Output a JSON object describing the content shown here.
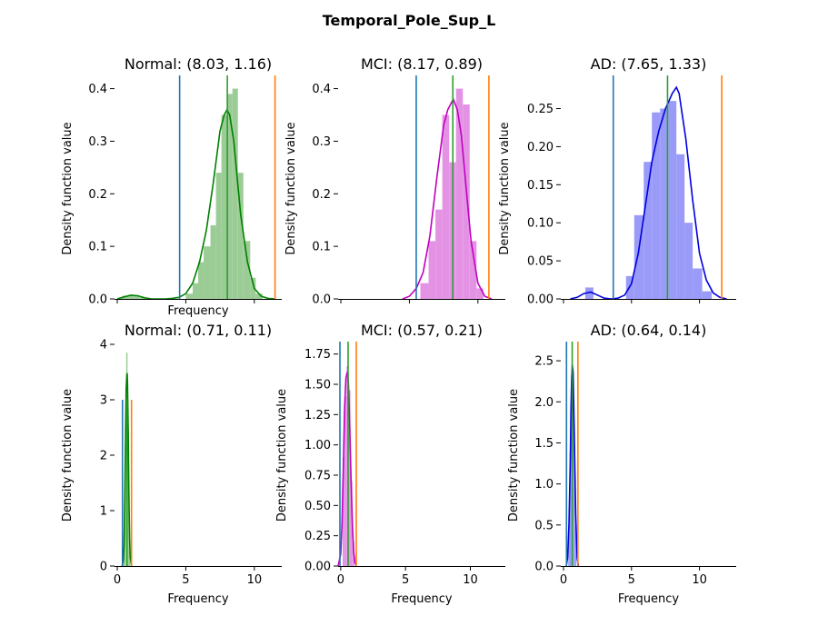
{
  "figure": {
    "title": "Temporal_Pole_Sup_L"
  },
  "chart_data": [
    {
      "type": "histogram",
      "title": "Normal: (8.03, 1.16)",
      "xlabel": "Frequency",
      "ylabel": "Density function value",
      "color": "#008000",
      "bar_color": "#9ccc96",
      "xlim": [
        -0.2,
        12.0
      ],
      "ylim": [
        0,
        0.42
      ],
      "yticks": [
        {
          "v": 0.0,
          "label": "0.0"
        },
        {
          "v": 0.1,
          "label": "0.1"
        },
        {
          "v": 0.2,
          "label": "0.2"
        },
        {
          "v": 0.3,
          "label": "0.3"
        },
        {
          "v": 0.4,
          "label": "0.4"
        }
      ],
      "xticks": [],
      "show_xlabel": true,
      "show_ylabel": true,
      "show_xtick_marks": true,
      "vlines": [
        {
          "x": 4.55,
          "color": "#1f77b4"
        },
        {
          "x": 8.03,
          "color": "#2ca02c"
        },
        {
          "x": 11.51,
          "color": "#ff7f0e"
        }
      ],
      "bins": [
        {
          "x0": 0.0,
          "x1": 0.4,
          "h": 0.002
        },
        {
          "x0": 0.4,
          "x1": 0.8,
          "h": 0.006
        },
        {
          "x0": 0.8,
          "x1": 1.2,
          "h": 0.008
        },
        {
          "x0": 1.2,
          "x1": 1.6,
          "h": 0.006
        },
        {
          "x0": 1.6,
          "x1": 2.0,
          "h": 0.003
        },
        {
          "x0": 5.0,
          "x1": 5.5,
          "h": 0.01
        },
        {
          "x0": 5.5,
          "x1": 5.9,
          "h": 0.03
        },
        {
          "x0": 5.9,
          "x1": 6.3,
          "h": 0.07
        },
        {
          "x0": 6.3,
          "x1": 6.8,
          "h": 0.1
        },
        {
          "x0": 6.8,
          "x1": 7.2,
          "h": 0.14
        },
        {
          "x0": 7.2,
          "x1": 7.6,
          "h": 0.24
        },
        {
          "x0": 7.6,
          "x1": 8.0,
          "h": 0.35
        },
        {
          "x0": 8.0,
          "x1": 8.4,
          "h": 0.39
        },
        {
          "x0": 8.4,
          "x1": 8.8,
          "h": 0.4
        },
        {
          "x0": 8.8,
          "x1": 9.2,
          "h": 0.24
        },
        {
          "x0": 9.2,
          "x1": 9.7,
          "h": 0.11
        },
        {
          "x0": 9.7,
          "x1": 10.1,
          "h": 0.04
        },
        {
          "x0": 10.1,
          "x1": 10.6,
          "h": 0.01
        }
      ],
      "kde": {
        "x": [
          0,
          0.5,
          1.0,
          1.5,
          2.0,
          2.5,
          3.0,
          3.5,
          4.0,
          4.5,
          5.0,
          5.5,
          6.0,
          6.5,
          7.0,
          7.5,
          7.8,
          8.0,
          8.2,
          8.5,
          9.0,
          9.5,
          10.0,
          10.5,
          11.0,
          11.5
        ],
        "y": [
          0.0,
          0.004,
          0.007,
          0.006,
          0.002,
          0.0,
          0.0,
          0.0,
          0.001,
          0.003,
          0.01,
          0.03,
          0.07,
          0.13,
          0.22,
          0.32,
          0.35,
          0.36,
          0.35,
          0.3,
          0.16,
          0.07,
          0.02,
          0.005,
          0.001,
          0.0
        ]
      }
    },
    {
      "type": "histogram",
      "title": "MCI: (8.17, 0.89)",
      "xlabel": "",
      "ylabel": "Density function value",
      "color": "#c000c0",
      "bar_color": "#e493e4",
      "xlim": [
        -0.2,
        12.0
      ],
      "ylim": [
        0,
        0.42
      ],
      "yticks": [
        {
          "v": 0.0,
          "label": "0.0"
        },
        {
          "v": 0.1,
          "label": "0.1"
        },
        {
          "v": 0.2,
          "label": "0.2"
        },
        {
          "v": 0.3,
          "label": "0.3"
        },
        {
          "v": 0.4,
          "label": "0.4"
        }
      ],
      "xticks": [],
      "show_xlabel": false,
      "show_ylabel": true,
      "show_xtick_marks": true,
      "vlines": [
        {
          "x": 5.5,
          "color": "#1f77b4"
        },
        {
          "x": 8.17,
          "color": "#2ca02c"
        },
        {
          "x": 10.8,
          "color": "#ff7f0e"
        }
      ],
      "bins": [
        {
          "x0": 5.8,
          "x1": 6.4,
          "h": 0.03
        },
        {
          "x0": 6.4,
          "x1": 6.9,
          "h": 0.11
        },
        {
          "x0": 6.9,
          "x1": 7.4,
          "h": 0.17
        },
        {
          "x0": 7.4,
          "x1": 7.9,
          "h": 0.35
        },
        {
          "x0": 7.9,
          "x1": 8.4,
          "h": 0.26
        },
        {
          "x0": 8.4,
          "x1": 8.9,
          "h": 0.4
        },
        {
          "x0": 8.9,
          "x1": 9.4,
          "h": 0.37
        },
        {
          "x0": 9.4,
          "x1": 9.9,
          "h": 0.11
        },
        {
          "x0": 9.9,
          "x1": 10.4,
          "h": 0.02
        }
      ],
      "kde": {
        "x": [
          4.5,
          5.0,
          5.5,
          6.0,
          6.5,
          7.0,
          7.5,
          7.8,
          8.0,
          8.2,
          8.5,
          8.8,
          9.0,
          9.5,
          10.0,
          10.5,
          11.0
        ],
        "y": [
          0.0,
          0.005,
          0.02,
          0.05,
          0.12,
          0.23,
          0.33,
          0.36,
          0.37,
          0.38,
          0.36,
          0.31,
          0.25,
          0.11,
          0.03,
          0.005,
          0.0
        ]
      }
    },
    {
      "type": "histogram",
      "title": "AD: (7.65, 1.33)",
      "xlabel": "",
      "ylabel": "Density function value",
      "color": "#0000e0",
      "bar_color": "#9a9af8",
      "xlim": [
        -0.2,
        12.7
      ],
      "ylim": [
        0,
        0.29
      ],
      "yticks": [
        {
          "v": 0.0,
          "label": "0.00"
        },
        {
          "v": 0.05,
          "label": "0.05"
        },
        {
          "v": 0.1,
          "label": "0.10"
        },
        {
          "v": 0.15,
          "label": "0.15"
        },
        {
          "v": 0.2,
          "label": "0.20"
        },
        {
          "v": 0.25,
          "label": "0.25"
        }
      ],
      "xticks": [],
      "show_xlabel": false,
      "show_ylabel": true,
      "show_xtick_marks": true,
      "vlines": [
        {
          "x": 3.66,
          "color": "#1f77b4"
        },
        {
          "x": 7.65,
          "color": "#2ca02c"
        },
        {
          "x": 11.64,
          "color": "#ff7f0e"
        }
      ],
      "bins": [
        {
          "x0": 1.6,
          "x1": 2.2,
          "h": 0.015
        },
        {
          "x0": 4.6,
          "x1": 5.2,
          "h": 0.03
        },
        {
          "x0": 5.2,
          "x1": 5.9,
          "h": 0.11
        },
        {
          "x0": 5.9,
          "x1": 6.5,
          "h": 0.18
        },
        {
          "x0": 6.5,
          "x1": 7.1,
          "h": 0.245
        },
        {
          "x0": 7.1,
          "x1": 7.7,
          "h": 0.25
        },
        {
          "x0": 7.7,
          "x1": 8.3,
          "h": 0.26
        },
        {
          "x0": 8.3,
          "x1": 8.9,
          "h": 0.19
        },
        {
          "x0": 8.9,
          "x1": 9.5,
          "h": 0.1
        },
        {
          "x0": 9.5,
          "x1": 10.2,
          "h": 0.04
        },
        {
          "x0": 10.2,
          "x1": 10.9,
          "h": 0.01
        }
      ],
      "kde": {
        "x": [
          0.5,
          1.0,
          1.5,
          2.0,
          2.5,
          3.0,
          3.5,
          4.0,
          4.5,
          5.0,
          5.5,
          6.0,
          6.5,
          7.0,
          7.5,
          8.0,
          8.3,
          8.5,
          9.0,
          9.5,
          10.0,
          10.5,
          11.0,
          11.5,
          12.0
        ],
        "y": [
          0.0,
          0.002,
          0.007,
          0.009,
          0.005,
          0.001,
          0.0,
          0.001,
          0.005,
          0.02,
          0.06,
          0.12,
          0.18,
          0.22,
          0.25,
          0.27,
          0.278,
          0.27,
          0.21,
          0.13,
          0.06,
          0.025,
          0.008,
          0.002,
          0.0
        ]
      }
    },
    {
      "type": "histogram",
      "title": "Normal: (0.71, 0.11)",
      "xlabel": "Frequency",
      "ylabel": "Density function value",
      "color": "#008000",
      "bar_color": "#9ccc96",
      "xlim": [
        -0.2,
        12.0
      ],
      "ylim": [
        0,
        4.0
      ],
      "yticks": [
        {
          "v": 0,
          "label": "0"
        },
        {
          "v": 1,
          "label": "1"
        },
        {
          "v": 2,
          "label": "2"
        },
        {
          "v": 3,
          "label": "3"
        },
        {
          "v": 4,
          "label": "4"
        }
      ],
      "xticks": [
        {
          "v": 0,
          "label": "0"
        },
        {
          "v": 5,
          "label": "5"
        },
        {
          "v": 10,
          "label": "10"
        }
      ],
      "show_xlabel": true,
      "show_ylabel": true,
      "show_xtick_marks": true,
      "vlines": [
        {
          "x": 0.38,
          "color": "#1f77b4",
          "h": 3.0
        },
        {
          "x": 0.71,
          "color": "#2ca02c",
          "h": 3.0
        },
        {
          "x": 1.04,
          "color": "#ff7f0e",
          "h": 3.0
        }
      ],
      "bins": [
        {
          "x0": 0.45,
          "x1": 0.55,
          "h": 0.6
        },
        {
          "x0": 0.55,
          "x1": 0.65,
          "h": 2.2
        },
        {
          "x0": 0.65,
          "x1": 0.75,
          "h": 3.85
        },
        {
          "x0": 0.75,
          "x1": 0.85,
          "h": 2.5
        },
        {
          "x0": 0.85,
          "x1": 0.95,
          "h": 0.5
        }
      ],
      "kde": {
        "x": [
          0.35,
          0.45,
          0.5,
          0.55,
          0.6,
          0.65,
          0.7,
          0.72,
          0.75,
          0.8,
          0.85,
          0.9,
          0.95,
          1.05
        ],
        "y": [
          0.0,
          0.1,
          0.4,
          1.2,
          2.3,
          3.2,
          3.45,
          3.48,
          3.3,
          2.4,
          1.3,
          0.5,
          0.15,
          0.0
        ]
      }
    },
    {
      "type": "histogram",
      "title": "MCI: (0.57, 0.21)",
      "xlabel": "Frequency",
      "ylabel": "Density function value",
      "color": "#c000c0",
      "bar_color": "#e493e4",
      "xlim": [
        -0.2,
        12.7
      ],
      "ylim": [
        0,
        1.83
      ],
      "yticks": [
        {
          "v": 0.0,
          "label": "0.00"
        },
        {
          "v": 0.25,
          "label": "0.25"
        },
        {
          "v": 0.5,
          "label": "0.50"
        },
        {
          "v": 0.75,
          "label": "0.75"
        },
        {
          "v": 1.0,
          "label": "1.00"
        },
        {
          "v": 1.25,
          "label": "1.25"
        },
        {
          "v": 1.5,
          "label": "1.50"
        },
        {
          "v": 1.75,
          "label": "1.75"
        }
      ],
      "xticks": [
        {
          "v": 0,
          "label": "0"
        },
        {
          "v": 5,
          "label": "5"
        },
        {
          "v": 10,
          "label": "10"
        }
      ],
      "show_xlabel": true,
      "show_ylabel": true,
      "show_xtick_marks": true,
      "vlines": [
        {
          "x": -0.06,
          "color": "#1f77b4",
          "h": 1.9
        },
        {
          "x": 0.57,
          "color": "#2ca02c",
          "h": 1.9
        },
        {
          "x": 1.2,
          "color": "#ff7f0e",
          "h": 1.9
        }
      ],
      "bins": [
        {
          "x0": 0.15,
          "x1": 0.3,
          "h": 0.9
        },
        {
          "x0": 0.3,
          "x1": 0.45,
          "h": 1.4
        },
        {
          "x0": 0.45,
          "x1": 0.6,
          "h": 1.65
        },
        {
          "x0": 0.6,
          "x1": 0.75,
          "h": 1.45
        },
        {
          "x0": 0.75,
          "x1": 0.9,
          "h": 0.7
        },
        {
          "x0": 0.9,
          "x1": 1.05,
          "h": 0.2
        }
      ],
      "kde": {
        "x": [
          -0.2,
          0.0,
          0.1,
          0.2,
          0.3,
          0.4,
          0.5,
          0.55,
          0.6,
          0.7,
          0.8,
          0.9,
          1.0,
          1.1,
          1.2
        ],
        "y": [
          0.0,
          0.1,
          0.35,
          0.8,
          1.3,
          1.55,
          1.6,
          1.58,
          1.5,
          1.15,
          0.7,
          0.35,
          0.12,
          0.03,
          0.0
        ]
      }
    },
    {
      "type": "histogram",
      "title": "AD: (0.64, 0.14)",
      "xlabel": "Frequency",
      "ylabel": "Density function value",
      "color": "#0000e0",
      "bar_color": "#9a9af8",
      "xlim": [
        -0.2,
        12.7
      ],
      "ylim": [
        0,
        2.7
      ],
      "yticks": [
        {
          "v": 0.0,
          "label": "0.0"
        },
        {
          "v": 0.5,
          "label": "0.5"
        },
        {
          "v": 1.0,
          "label": "1.0"
        },
        {
          "v": 1.5,
          "label": "1.5"
        },
        {
          "v": 2.0,
          "label": "2.0"
        },
        {
          "v": 2.5,
          "label": "2.5"
        }
      ],
      "xticks": [
        {
          "v": 0,
          "label": "0"
        },
        {
          "v": 5,
          "label": "5"
        },
        {
          "v": 10,
          "label": "10"
        }
      ],
      "show_xlabel": true,
      "show_ylabel": true,
      "show_xtick_marks": true,
      "vlines": [
        {
          "x": 0.22,
          "color": "#1f77b4",
          "h": 2.8
        },
        {
          "x": 0.64,
          "color": "#2ca02c",
          "h": 2.8
        },
        {
          "x": 1.06,
          "color": "#ff7f0e",
          "h": 2.8
        }
      ],
      "bins": [
        {
          "x0": 0.35,
          "x1": 0.45,
          "h": 0.5
        },
        {
          "x0": 0.45,
          "x1": 0.55,
          "h": 1.4
        },
        {
          "x0": 0.55,
          "x1": 0.65,
          "h": 2.2
        },
        {
          "x0": 0.65,
          "x1": 0.75,
          "h": 2.4
        },
        {
          "x0": 0.75,
          "x1": 0.85,
          "h": 1.5
        },
        {
          "x0": 0.85,
          "x1": 0.95,
          "h": 0.5
        }
      ],
      "kde": {
        "x": [
          0.2,
          0.3,
          0.4,
          0.5,
          0.55,
          0.6,
          0.65,
          0.7,
          0.75,
          0.8,
          0.9,
          1.0,
          1.1
        ],
        "y": [
          0.0,
          0.1,
          0.5,
          1.3,
          1.9,
          2.3,
          2.45,
          2.35,
          2.0,
          1.5,
          0.6,
          0.1,
          0.0
        ]
      }
    }
  ]
}
